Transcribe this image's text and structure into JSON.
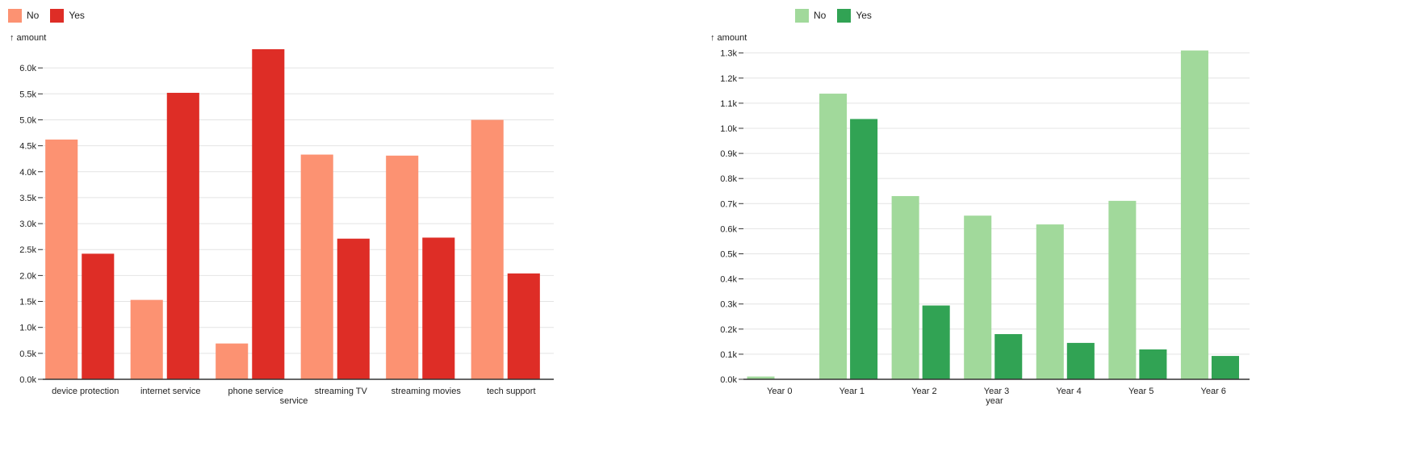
{
  "chart_data": [
    {
      "type": "bar",
      "title": "",
      "xlabel": "service",
      "ylabel": "↑ amount",
      "categories": [
        "device protection",
        "internet service",
        "phone service",
        "streaming TV",
        "streaming movies",
        "tech support"
      ],
      "series": [
        {
          "name": "No",
          "color": "#fc9272",
          "values": [
            4620,
            1530,
            690,
            4330,
            4310,
            4999
          ]
        },
        {
          "name": "Yes",
          "color": "#de2d26",
          "values": [
            2420,
            5520,
            6360,
            2710,
            2730,
            2040
          ]
        }
      ],
      "ylim": [
        0,
        6360
      ],
      "yticks": [
        0,
        500,
        1000,
        1500,
        2000,
        2500,
        3000,
        3500,
        4000,
        4500,
        5000,
        5500,
        6000
      ],
      "ytick_labels": [
        "0.0k",
        "0.5k",
        "1.0k",
        "1.5k",
        "2.0k",
        "2.5k",
        "3.0k",
        "3.5k",
        "4.0k",
        "4.5k",
        "5.0k",
        "5.5k",
        "6.0k"
      ],
      "grid": true,
      "legend_position": "top-left"
    },
    {
      "type": "bar",
      "title": "",
      "xlabel": "year",
      "ylabel": "↑ amount",
      "categories": [
        "Year 0",
        "Year 1",
        "Year 2",
        "Year 3",
        "Year 4",
        "Year 5",
        "Year 6"
      ],
      "series": [
        {
          "name": "No",
          "color": "#a1d99b",
          "values": [
            11,
            1138,
            730,
            652,
            617,
            711,
            1310
          ]
        },
        {
          "name": "Yes",
          "color": "#31a354",
          "values": [
            0,
            1037,
            294,
            180,
            145,
            119,
            93
          ]
        }
      ],
      "ylim": [
        0,
        1315
      ],
      "yticks": [
        0,
        100,
        200,
        300,
        400,
        500,
        600,
        700,
        800,
        900,
        1000,
        1100,
        1200,
        1300
      ],
      "ytick_labels": [
        "0.0k",
        "0.1k",
        "0.2k",
        "0.3k",
        "0.4k",
        "0.5k",
        "0.6k",
        "0.7k",
        "0.8k",
        "0.9k",
        "1.0k",
        "1.1k",
        "1.2k",
        "1.3k"
      ],
      "grid": true,
      "legend_position": "top-left"
    }
  ]
}
